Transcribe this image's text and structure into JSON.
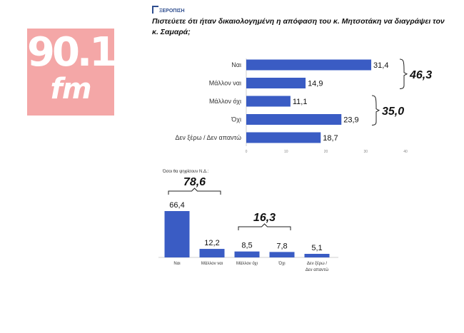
{
  "logo": {
    "number": "90.1",
    "suffix": "fm"
  },
  "source": {
    "label": "ΞΕΡΟΠΙΣΗ"
  },
  "chart_data": [
    {
      "type": "bar",
      "orientation": "horizontal",
      "title": "Πιστεύετε ότι ήταν δικαιολογημένη η απόφαση του κ. Μητσοτάκη να διαγράψει τον κ. Σαμαρά;",
      "categories": [
        "Ναι",
        "Μάλλον ναι",
        "Μάλλον όχι",
        "Όχι",
        "Δεν ξέρω / Δεν απαντώ"
      ],
      "values": [
        31.4,
        14.9,
        11.1,
        23.9,
        18.7
      ],
      "value_labels": [
        "31,4",
        "14,9",
        "11,1",
        "23,9",
        "18,7"
      ],
      "xlim": [
        0,
        40
      ],
      "x_ticks": [
        "0",
        "10",
        "20",
        "30",
        "40"
      ],
      "color": "#3a5cc4",
      "group_totals": [
        {
          "label": "46,3",
          "from": 0,
          "to": 1
        },
        {
          "label": "35,0",
          "from": 2,
          "to": 3
        }
      ]
    },
    {
      "type": "bar",
      "orientation": "vertical",
      "subtitle": "Όσοι θα ψηφίσουν Ν.Δ.:",
      "categories": [
        "Ναι",
        "Μάλλον ναι",
        "Μάλλον όχι",
        "Όχι",
        "Δεν ξέρω / Δεν απαντώ"
      ],
      "category_lines": [
        [
          "Ναι"
        ],
        [
          "Μάλλον ναι"
        ],
        [
          "Μάλλον όχι"
        ],
        [
          "Όχι"
        ],
        [
          "Δεν ξέρω /",
          "Δεν απαντώ"
        ]
      ],
      "values": [
        66.4,
        12.2,
        8.5,
        7.8,
        5.1
      ],
      "value_labels": [
        "66,4",
        "12,2",
        "8,5",
        "7,8",
        "5,1"
      ],
      "ylim": [
        0,
        66.4
      ],
      "color": "#3a5cc4",
      "group_totals": [
        {
          "label": "78,6",
          "from": 0,
          "to": 1
        },
        {
          "label": "16,3",
          "from": 2,
          "to": 3
        }
      ]
    }
  ]
}
